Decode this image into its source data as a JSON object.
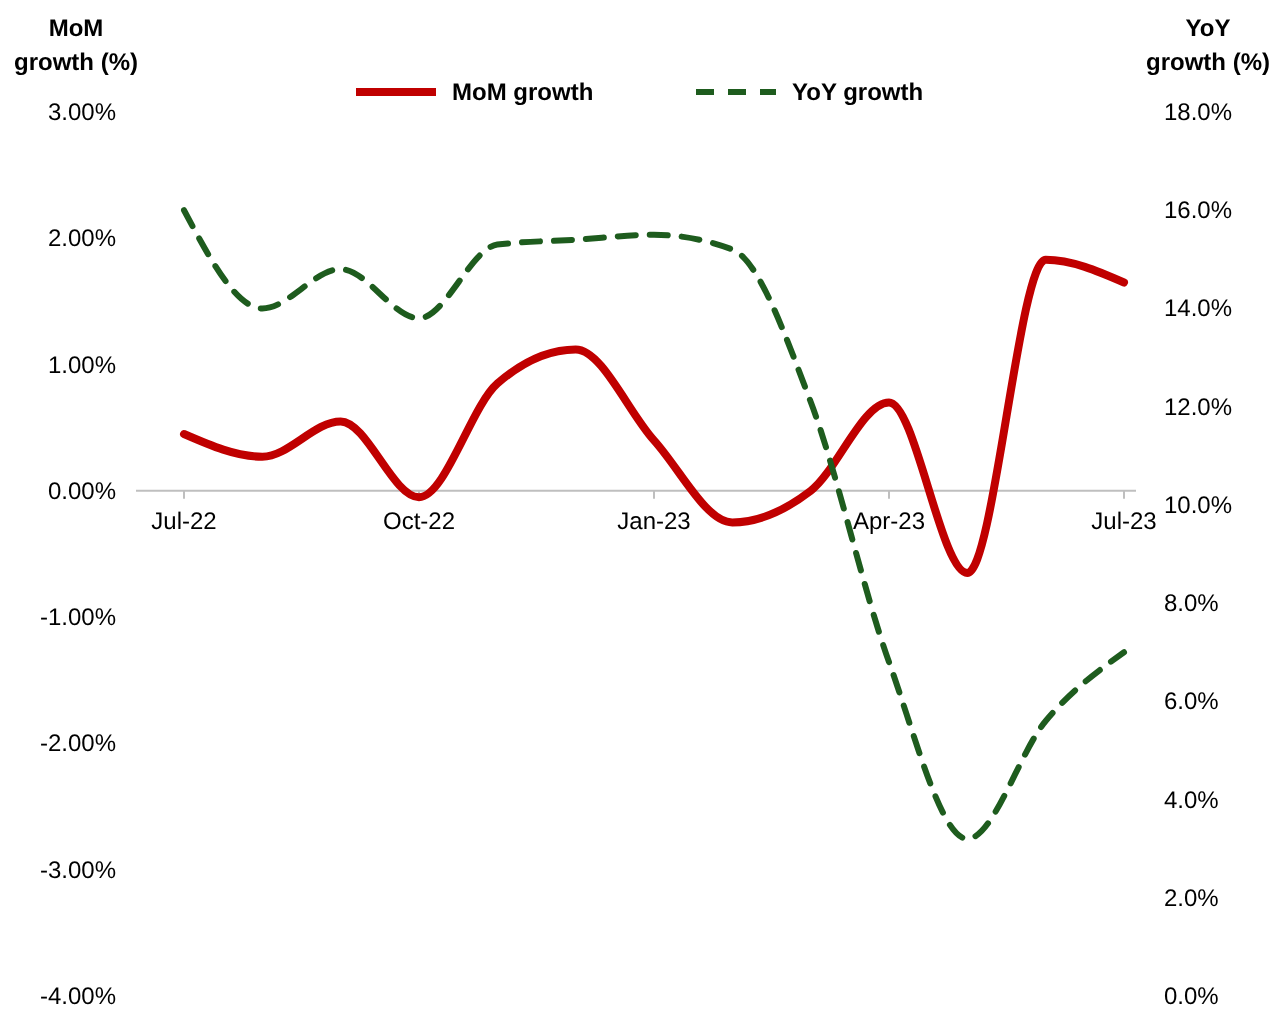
{
  "chart_data": {
    "type": "line",
    "ylabel": "MoM growth (%)",
    "y2label": "YoY growth (%)",
    "categories": [
      "Jul-22",
      null,
      null,
      "Oct-22",
      null,
      null,
      "Jan-23",
      null,
      null,
      "Apr-23",
      null,
      null,
      "Jul-23"
    ],
    "series": [
      {
        "name": "MoM growth",
        "color": "#c00000",
        "line_style": "solid",
        "values": [
          0.45,
          0.27,
          0.55,
          -0.05,
          0.85,
          1.12,
          0.4,
          -0.25,
          0.0,
          0.7,
          -0.65,
          1.83,
          1.65
        ]
      },
      {
        "name": "YoY growth",
        "color": "#1e5c1e",
        "line_style": "dashed",
        "axis": "y2",
        "values": [
          16.0,
          14.0,
          14.8,
          13.8,
          15.3,
          15.4,
          15.5,
          15.2,
          12.1,
          6.8,
          3.2,
          5.6,
          7.0
        ]
      }
    ],
    "ylim": [
      -4,
      3
    ],
    "yticks": [
      {
        "value": 3,
        "label": "3.00%"
      },
      {
        "value": 2,
        "label": "2.00%"
      },
      {
        "value": 1,
        "label": "1.00%"
      },
      {
        "value": 0,
        "label": "0.00%"
      },
      {
        "value": -1,
        "label": "-1.00%"
      },
      {
        "value": -2,
        "label": "-2.00%"
      },
      {
        "value": -3,
        "label": "-3.00%"
      },
      {
        "value": -4,
        "label": "-4.00%"
      }
    ],
    "y2lim": [
      0,
      18
    ],
    "y2ticks": [
      {
        "value": 18,
        "label": "18.0%"
      },
      {
        "value": 16,
        "label": "16.0%"
      },
      {
        "value": 14,
        "label": "14.0%"
      },
      {
        "value": 12,
        "label": "12.0%"
      },
      {
        "value": 10,
        "label": "10.0%"
      },
      {
        "value": 8,
        "label": "8.0%"
      },
      {
        "value": 6,
        "label": "6.0%"
      },
      {
        "value": 4,
        "label": "4.0%"
      },
      {
        "value": 2,
        "label": "2.0%"
      },
      {
        "value": 0,
        "label": "0.0%"
      }
    ],
    "grid": false,
    "legend": "top",
    "marker": "none"
  }
}
